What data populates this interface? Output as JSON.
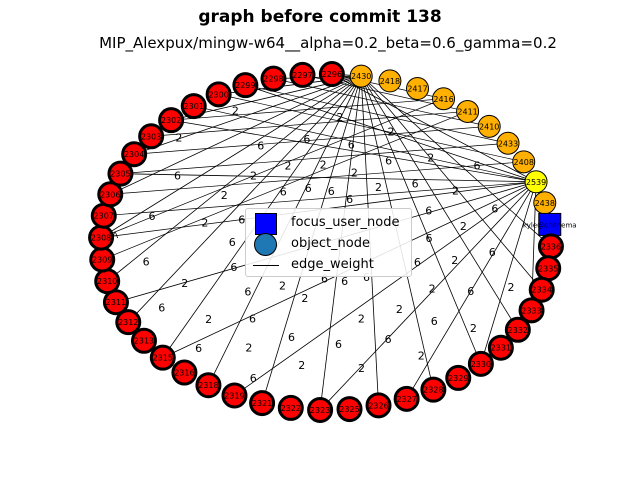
{
  "title": "graph before commit 138",
  "subtitle": "MIP_Alexpux/mingw-w64__alpha=0.2_beta=0.6_gamma=0.2",
  "legend": {
    "focus": "focus_user_node",
    "object": "object_node",
    "edge": "edge_weight"
  },
  "colors": {
    "red_node": "#ff0000",
    "orange_node": "#ffb000",
    "yellow_node": "#ffff00",
    "focus_node": "#0000ff",
    "edge": "#000000"
  },
  "graph": {
    "red_nodes": [
      "2296",
      "2297",
      "2298",
      "2299",
      "2300",
      "2301",
      "2302",
      "2303",
      "2304",
      "2305",
      "2306",
      "2307",
      "2308",
      "2309",
      "2310",
      "2311",
      "2312",
      "2313",
      "2315",
      "2316",
      "2318",
      "2319",
      "2321",
      "2322",
      "2323",
      "2325",
      "2326",
      "2327",
      "2328",
      "2329",
      "2330",
      "2331",
      "2332",
      "2333",
      "2334",
      "2335",
      "2336"
    ],
    "orange_nodes": [
      "2430",
      "2418",
      "2417",
      "2416",
      "2411",
      "2410",
      "2433",
      "2408",
      "2438"
    ],
    "yellow_nodes": [
      "2539"
    ],
    "focus_node": "kyle@onlinema",
    "partial_label": "A",
    "edge_label_glyphs": [
      "2",
      "6"
    ]
  }
}
